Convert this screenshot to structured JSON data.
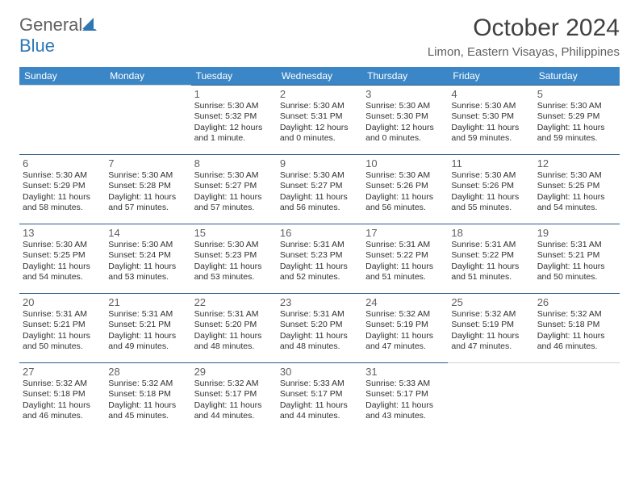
{
  "logo": {
    "general": "General",
    "blue": "Blue"
  },
  "header": {
    "month": "October 2024",
    "location": "Limon, Eastern Visayas, Philippines"
  },
  "colors": {
    "header_bg": "#3b86c6",
    "header_text": "#ffffff",
    "cell_border": "#2d5a8a",
    "logo_gray": "#606060",
    "logo_blue": "#2d77b5",
    "title_color": "#404040",
    "body_text": "#303030"
  },
  "dayNames": [
    "Sunday",
    "Monday",
    "Tuesday",
    "Wednesday",
    "Thursday",
    "Friday",
    "Saturday"
  ],
  "weeks": [
    [
      null,
      null,
      {
        "n": "1",
        "sr": "5:30 AM",
        "ss": "5:32 PM",
        "dl": "12 hours and 1 minute."
      },
      {
        "n": "2",
        "sr": "5:30 AM",
        "ss": "5:31 PM",
        "dl": "12 hours and 0 minutes."
      },
      {
        "n": "3",
        "sr": "5:30 AM",
        "ss": "5:30 PM",
        "dl": "12 hours and 0 minutes."
      },
      {
        "n": "4",
        "sr": "5:30 AM",
        "ss": "5:30 PM",
        "dl": "11 hours and 59 minutes."
      },
      {
        "n": "5",
        "sr": "5:30 AM",
        "ss": "5:29 PM",
        "dl": "11 hours and 59 minutes."
      }
    ],
    [
      {
        "n": "6",
        "sr": "5:30 AM",
        "ss": "5:29 PM",
        "dl": "11 hours and 58 minutes."
      },
      {
        "n": "7",
        "sr": "5:30 AM",
        "ss": "5:28 PM",
        "dl": "11 hours and 57 minutes."
      },
      {
        "n": "8",
        "sr": "5:30 AM",
        "ss": "5:27 PM",
        "dl": "11 hours and 57 minutes."
      },
      {
        "n": "9",
        "sr": "5:30 AM",
        "ss": "5:27 PM",
        "dl": "11 hours and 56 minutes."
      },
      {
        "n": "10",
        "sr": "5:30 AM",
        "ss": "5:26 PM",
        "dl": "11 hours and 56 minutes."
      },
      {
        "n": "11",
        "sr": "5:30 AM",
        "ss": "5:26 PM",
        "dl": "11 hours and 55 minutes."
      },
      {
        "n": "12",
        "sr": "5:30 AM",
        "ss": "5:25 PM",
        "dl": "11 hours and 54 minutes."
      }
    ],
    [
      {
        "n": "13",
        "sr": "5:30 AM",
        "ss": "5:25 PM",
        "dl": "11 hours and 54 minutes."
      },
      {
        "n": "14",
        "sr": "5:30 AM",
        "ss": "5:24 PM",
        "dl": "11 hours and 53 minutes."
      },
      {
        "n": "15",
        "sr": "5:30 AM",
        "ss": "5:23 PM",
        "dl": "11 hours and 53 minutes."
      },
      {
        "n": "16",
        "sr": "5:31 AM",
        "ss": "5:23 PM",
        "dl": "11 hours and 52 minutes."
      },
      {
        "n": "17",
        "sr": "5:31 AM",
        "ss": "5:22 PM",
        "dl": "11 hours and 51 minutes."
      },
      {
        "n": "18",
        "sr": "5:31 AM",
        "ss": "5:22 PM",
        "dl": "11 hours and 51 minutes."
      },
      {
        "n": "19",
        "sr": "5:31 AM",
        "ss": "5:21 PM",
        "dl": "11 hours and 50 minutes."
      }
    ],
    [
      {
        "n": "20",
        "sr": "5:31 AM",
        "ss": "5:21 PM",
        "dl": "11 hours and 50 minutes."
      },
      {
        "n": "21",
        "sr": "5:31 AM",
        "ss": "5:21 PM",
        "dl": "11 hours and 49 minutes."
      },
      {
        "n": "22",
        "sr": "5:31 AM",
        "ss": "5:20 PM",
        "dl": "11 hours and 48 minutes."
      },
      {
        "n": "23",
        "sr": "5:31 AM",
        "ss": "5:20 PM",
        "dl": "11 hours and 48 minutes."
      },
      {
        "n": "24",
        "sr": "5:32 AM",
        "ss": "5:19 PM",
        "dl": "11 hours and 47 minutes."
      },
      {
        "n": "25",
        "sr": "5:32 AM",
        "ss": "5:19 PM",
        "dl": "11 hours and 47 minutes."
      },
      {
        "n": "26",
        "sr": "5:32 AM",
        "ss": "5:18 PM",
        "dl": "11 hours and 46 minutes."
      }
    ],
    [
      {
        "n": "27",
        "sr": "5:32 AM",
        "ss": "5:18 PM",
        "dl": "11 hours and 46 minutes."
      },
      {
        "n": "28",
        "sr": "5:32 AM",
        "ss": "5:18 PM",
        "dl": "11 hours and 45 minutes."
      },
      {
        "n": "29",
        "sr": "5:32 AM",
        "ss": "5:17 PM",
        "dl": "11 hours and 44 minutes."
      },
      {
        "n": "30",
        "sr": "5:33 AM",
        "ss": "5:17 PM",
        "dl": "11 hours and 44 minutes."
      },
      {
        "n": "31",
        "sr": "5:33 AM",
        "ss": "5:17 PM",
        "dl": "11 hours and 43 minutes."
      },
      null,
      null
    ]
  ]
}
